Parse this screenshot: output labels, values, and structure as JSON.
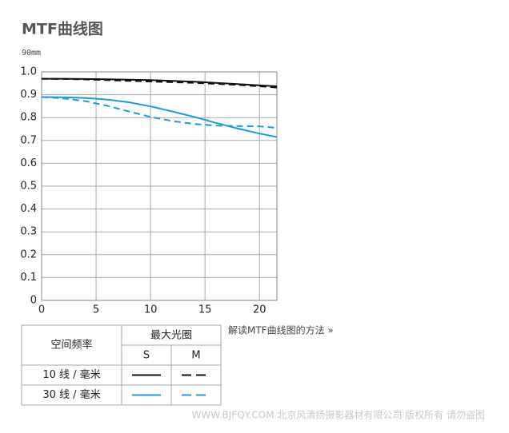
{
  "chart_data": {
    "type": "line",
    "title": "MTF曲线图",
    "subtitle": "90mm",
    "x": [
      0,
      2,
      4,
      6,
      8,
      10,
      12,
      14,
      16,
      18,
      20,
      21.6
    ],
    "series": [
      {
        "color": "#111111",
        "style": "solid",
        "values": [
          0.97,
          0.97,
          0.969,
          0.968,
          0.966,
          0.964,
          0.961,
          0.957,
          0.952,
          0.947,
          0.941,
          0.937
        ]
      },
      {
        "color": "#111111",
        "style": "dashed",
        "values": [
          0.97,
          0.969,
          0.967,
          0.964,
          0.961,
          0.958,
          0.955,
          0.952,
          0.948,
          0.943,
          0.937,
          0.931
        ]
      },
      {
        "color": "#1a9be0",
        "style": "solid",
        "values": [
          0.89,
          0.889,
          0.886,
          0.879,
          0.867,
          0.849,
          0.827,
          0.803,
          0.777,
          0.752,
          0.73,
          0.715
        ]
      },
      {
        "color": "#1a9be0",
        "style": "dashed",
        "values": [
          0.89,
          0.884,
          0.872,
          0.852,
          0.827,
          0.803,
          0.785,
          0.772,
          0.765,
          0.763,
          0.762,
          0.755
        ]
      }
    ],
    "xlim": [
      0,
      21.6
    ],
    "xticks": [
      0,
      5,
      10,
      15,
      20
    ],
    "ylim": [
      0,
      1
    ],
    "yticks": [
      0,
      0.1,
      0.2,
      0.3,
      0.4,
      0.5,
      0.6,
      0.7,
      0.8,
      0.9,
      {
        "value": 1,
        "label": "1.0"
      }
    ],
    "grid": true
  },
  "legend_table": {
    "frequency_header": "空间频率",
    "aperture_header": "最大光圈",
    "columns": [
      "S",
      "M"
    ],
    "rows": [
      "10 线 / 毫米",
      "30 线 / 毫米"
    ]
  },
  "link": "解读MTF曲线图的方法 »",
  "watermark": "WWW.BJFQY.COM 北京风清扬摄影器材有限公司 版权所有 请勿盗图"
}
